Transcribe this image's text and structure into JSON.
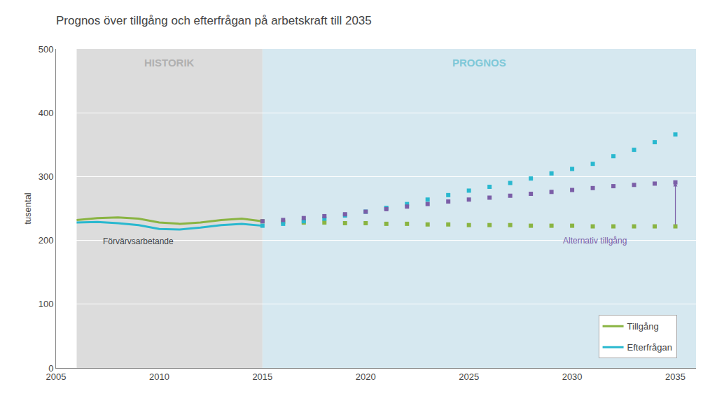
{
  "chart_data": {
    "type": "line",
    "title": "Prognos över tillgång och efterfrågan på arbetskraft till 2035",
    "y_label": "tusental",
    "xlim": [
      2005,
      2036
    ],
    "xticks": [
      2005,
      2010,
      2015,
      2020,
      2025,
      2030,
      2035
    ],
    "ylim": [
      0,
      500
    ],
    "yticks": [
      0,
      100,
      200,
      300,
      400,
      500
    ],
    "grid": true,
    "legend": "lower right",
    "regions": [
      {
        "label": "HISTORIK",
        "from": 2006,
        "to": 2015,
        "color": "#dcdcdc",
        "label_color": "#b0b0b0"
      },
      {
        "label": "PROGNOS",
        "from": 2015,
        "to": 2036,
        "color": "#d6e8f0",
        "label_color": "#7ec8d8"
      }
    ],
    "series": [
      {
        "name": "Tillgång",
        "color": "#8ab442",
        "line_style": "solid",
        "x": [
          2006,
          2007,
          2008,
          2009,
          2010,
          2011,
          2012,
          2013,
          2014,
          2015
        ],
        "values": [
          232,
          235,
          236,
          234,
          228,
          226,
          228,
          232,
          234,
          230
        ]
      },
      {
        "name": "Efterfrågan",
        "color": "#29b8cf",
        "line_style": "solid",
        "x": [
          2006,
          2007,
          2008,
          2009,
          2010,
          2011,
          2012,
          2013,
          2014,
          2015
        ],
        "values": [
          228,
          229,
          227,
          224,
          218,
          217,
          220,
          224,
          226,
          223
        ]
      },
      {
        "name": "Tillgång",
        "color": "#8ab442",
        "line_style": "none",
        "marker": "square",
        "x": [
          2015,
          2016,
          2017,
          2018,
          2019,
          2020,
          2021,
          2022,
          2023,
          2024,
          2025,
          2026,
          2027,
          2028,
          2029,
          2030,
          2031,
          2032,
          2033,
          2034,
          2035
        ],
        "values": [
          230,
          229,
          228,
          228,
          227,
          227,
          226,
          226,
          225,
          225,
          224,
          224,
          224,
          223,
          223,
          223,
          222,
          222,
          222,
          222,
          222
        ]
      },
      {
        "name": "Efterfrågan",
        "color": "#29b8cf",
        "line_style": "none",
        "marker": "square",
        "x": [
          2015,
          2016,
          2017,
          2018,
          2019,
          2020,
          2021,
          2022,
          2023,
          2024,
          2025,
          2026,
          2027,
          2028,
          2029,
          2030,
          2031,
          2032,
          2033,
          2034,
          2035
        ],
        "values": [
          223,
          226,
          230,
          234,
          239,
          245,
          251,
          257,
          264,
          271,
          278,
          284,
          290,
          297,
          305,
          312,
          320,
          332,
          342,
          354,
          366
        ]
      },
      {
        "name": "Alternativ tillgång",
        "color": "#7b5ea7",
        "line_style": "none",
        "marker": "square",
        "x": [
          2015,
          2016,
          2017,
          2018,
          2019,
          2020,
          2021,
          2022,
          2023,
          2024,
          2025,
          2026,
          2027,
          2028,
          2029,
          2030,
          2031,
          2032,
          2033,
          2034,
          2035
        ],
        "values": [
          230,
          232,
          235,
          238,
          241,
          245,
          249,
          253,
          257,
          261,
          264,
          267,
          270,
          273,
          276,
          279,
          282,
          285,
          287,
          289,
          291
        ]
      }
    ],
    "annotations": [
      {
        "text": "Förvärvsarbetande",
        "x": 2007.2,
        "y": 208,
        "color": "#444444"
      },
      {
        "text": "Alternativ tillgång",
        "x": 2029.5,
        "y": 209,
        "color": "#7b5ea7",
        "arrow_from": [
          2035,
          223
        ],
        "arrow_to": [
          2035,
          291
        ]
      }
    ]
  }
}
